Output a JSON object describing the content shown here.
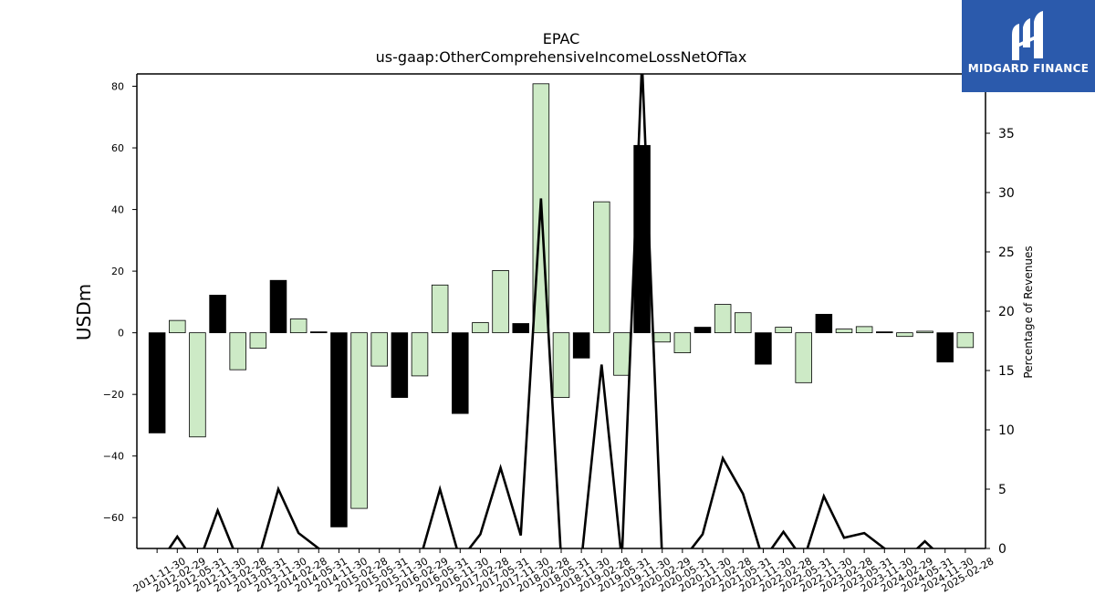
{
  "logo": {
    "text": "MIDGARD FINANCE",
    "bg_color": "#2b5aac"
  },
  "chart_data": {
    "type": "bar",
    "title": "EPAC",
    "subtitle": "us-gaap:OtherComprehensiveIncomeLossNetOfTax",
    "ylabel": "USDm",
    "y2label": "Percentage of Revenues",
    "ylim": [
      -70,
      84
    ],
    "y2lim": [
      0,
      40
    ],
    "yticks": [
      80,
      60,
      40,
      20,
      0,
      -20,
      -40,
      -60
    ],
    "ytick_labels": [
      "80",
      "60",
      "40",
      "20",
      "0",
      "−20",
      "−40",
      "−60"
    ],
    "y2ticks": [
      0,
      5,
      10,
      15,
      20,
      25,
      30,
      35
    ],
    "y2tick_labels": [
      "0",
      "5",
      "10",
      "15",
      "20",
      "25",
      "30",
      "35"
    ],
    "categories": [
      "2011-11-30",
      "2012-02-29",
      "2012-05-31",
      "2012-11-30",
      "2013-02-28",
      "2013-05-31",
      "2013-11-30",
      "2014-02-28",
      "2014-05-31",
      "2014-11-30",
      "2015-02-28",
      "2015-05-31",
      "2015-11-30",
      "2016-02-29",
      "2016-05-31",
      "2016-11-30",
      "2017-02-28",
      "2017-05-31",
      "2017-11-30",
      "2018-02-28",
      "2018-05-31",
      "2018-11-30",
      "2019-02-28",
      "2019-05-31",
      "2019-11-30",
      "2020-02-29",
      "2020-05-31",
      "2020-11-30",
      "2021-02-28",
      "2021-05-31",
      "2021-11-30",
      "2022-02-28",
      "2022-05-31",
      "2022-11-30",
      "2023-02-28",
      "2023-05-31",
      "2023-11-30",
      "2024-02-29",
      "2024-05-31",
      "2024-11-30",
      "2025-02-28"
    ],
    "series": [
      {
        "values": [
          -32.5,
          4,
          -33.8,
          12.2,
          -12,
          -5,
          17,
          4.5,
          0.3,
          -63,
          -57,
          -10.8,
          -21,
          -14,
          15.5,
          -26.2,
          3.3,
          20.2,
          3,
          80.8,
          -21,
          -8.2,
          42.5,
          -13.8,
          60.8,
          -3,
          -6.5,
          1.8,
          9.2,
          6.5,
          -10.2,
          1.8,
          -16.2,
          6,
          1.2,
          2,
          0.3,
          -1.2,
          0.5,
          -9.5,
          -4.8
        ],
        "colors": [
          "#000000",
          "#cdeac6",
          "#cdeac6",
          "#000000",
          "#cdeac6",
          "#cdeac6",
          "#000000",
          "#cdeac6",
          "#000000",
          "#000000",
          "#cdeac6",
          "#cdeac6",
          "#000000",
          "#cdeac6",
          "#cdeac6",
          "#000000",
          "#cdeac6",
          "#cdeac6",
          "#000000",
          "#cdeac6",
          "#cdeac6",
          "#000000",
          "#cdeac6",
          "#cdeac6",
          "#000000",
          "#cdeac6",
          "#cdeac6",
          "#000000",
          "#cdeac6",
          "#cdeac6",
          "#000000",
          "#cdeac6",
          "#cdeac6",
          "#000000",
          "#cdeac6",
          "#cdeac6",
          "#000000",
          "#cdeac6",
          "#cdeac6",
          "#000000",
          "#cdeac6"
        ]
      },
      {
        "type": "line",
        "axis": "right",
        "color": "#000000",
        "values": [
          -1.5,
          1,
          -1.5,
          3.2,
          -1,
          -1,
          5,
          1.3,
          0,
          -1,
          -1.5,
          -1.5,
          -1.5,
          -1,
          5,
          -1,
          1.2,
          6.8,
          1.1,
          29.5,
          -1,
          -1,
          15.5,
          -1,
          41,
          -1,
          -1,
          1.2,
          7.6,
          4.6,
          -1,
          1.4,
          -1,
          4.4,
          0.9,
          1.3,
          0,
          -1,
          0.6,
          -1,
          -1
        ]
      }
    ],
    "grid": false
  }
}
